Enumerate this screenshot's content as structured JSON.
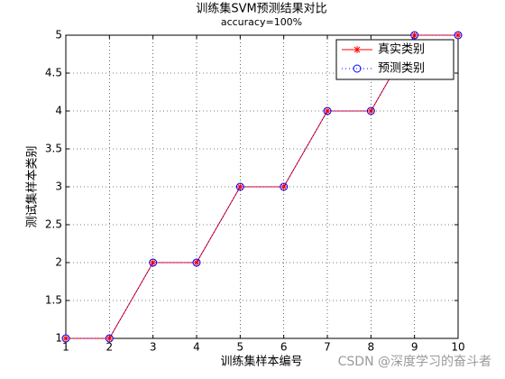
{
  "chart_data": {
    "type": "line",
    "title": "训练集SVM预测结果对比",
    "subtitle": "accuracy=100%",
    "x_label": "训练集样本编号",
    "y_label": "测试集样本类别",
    "x": [
      1,
      2,
      3,
      4,
      5,
      6,
      7,
      8,
      9,
      10
    ],
    "series": [
      {
        "name": "真实类别",
        "color": "#ff0000",
        "marker": "star",
        "line_style": "solid",
        "values": [
          1,
          1,
          2,
          2,
          3,
          3,
          4,
          4,
          5,
          5
        ]
      },
      {
        "name": "预测类别",
        "color": "#0000ff",
        "marker": "circle",
        "line_style": "dotted",
        "values": [
          1,
          1,
          2,
          2,
          3,
          3,
          4,
          4,
          5,
          5
        ]
      }
    ],
    "xlim": [
      1,
      10
    ],
    "xticks": [
      1,
      2,
      3,
      4,
      5,
      6,
      7,
      8,
      9,
      10
    ],
    "ylim": [
      1,
      5
    ],
    "yticks": [
      1,
      1.5,
      2,
      2.5,
      3,
      3.5,
      4,
      4.5,
      5
    ],
    "grid": true,
    "legend": "northeast",
    "watermark": "CSDN @深度学习的奋斗者"
  }
}
